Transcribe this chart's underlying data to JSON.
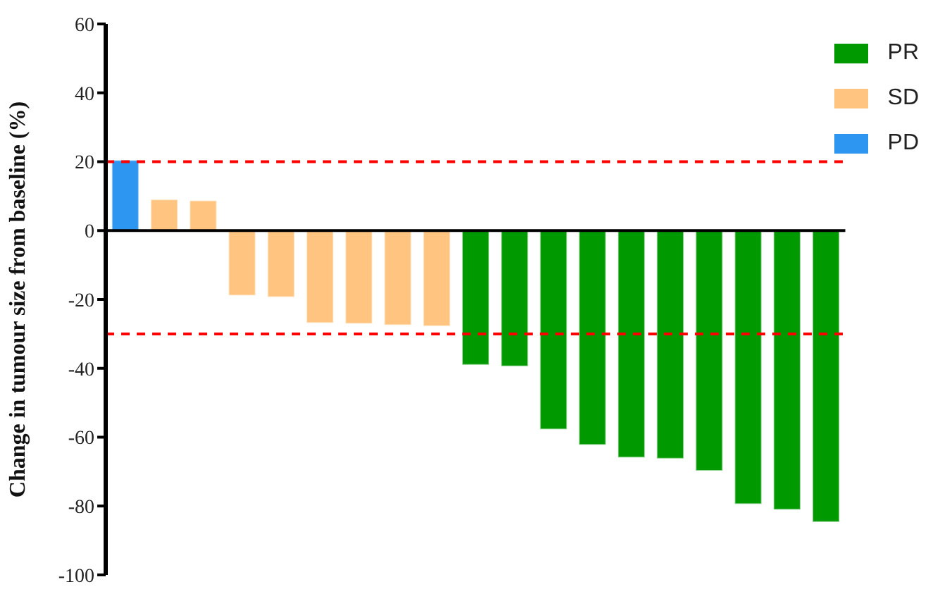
{
  "chart_data": {
    "type": "bar",
    "ylabel": "Change in tumour size from baseline (%)",
    "stacked": true,
    "categories": [
      null,
      null,
      null,
      null,
      null,
      null,
      null,
      null,
      null,
      null,
      null,
      null,
      null,
      null,
      null,
      null,
      null,
      null,
      null
    ],
    "series": [
      {
        "name": "PR",
        "color": "#009900",
        "values": [
          null,
          null,
          null,
          null,
          null,
          null,
          null,
          null,
          null,
          -39,
          -39.4,
          -57.7,
          -62.2,
          -65.9,
          -66.2,
          -69.7,
          -79.4,
          -81,
          -84.6
        ]
      },
      {
        "name": "SD",
        "color": "#ffc47f",
        "values": [
          null,
          9,
          8.7,
          -18.8,
          -19.3,
          -26.8,
          -27,
          -27.4,
          -27.7,
          null,
          null,
          null,
          null,
          null,
          null,
          null,
          null,
          null,
          null
        ]
      },
      {
        "name": "PD",
        "color": "#2d96f0",
        "values": [
          20.4,
          null,
          null,
          null,
          null,
          null,
          null,
          null,
          null,
          null,
          null,
          null,
          null,
          null,
          null,
          null,
          null,
          null,
          null
        ]
      }
    ],
    "ylim": [
      -100,
      60
    ],
    "yticks": [
      -100,
      -80,
      -60,
      -40,
      -20,
      0,
      20,
      40,
      60
    ],
    "ref_lines": [
      {
        "axis": "y",
        "value": 20,
        "color": "#ff0000",
        "line_style": "dashed"
      },
      {
        "axis": "y",
        "value": -30,
        "color": "#ff0000",
        "line_style": "dashed"
      }
    ],
    "tick_labels": "y",
    "grid": false,
    "legend": "top right"
  }
}
